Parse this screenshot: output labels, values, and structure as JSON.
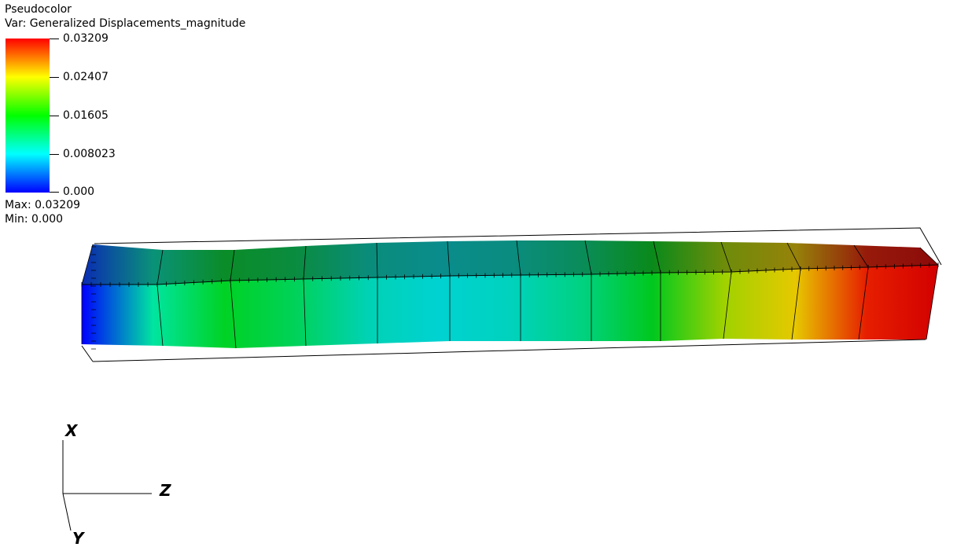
{
  "legend": {
    "plot_type": "Pseudocolor",
    "variable": "Var: Generalized Displacements_magnitude",
    "ticks": [
      {
        "value": 0.03209,
        "label": "0.03209"
      },
      {
        "value": 0.02407,
        "label": "0.02407"
      },
      {
        "value": 0.01605,
        "label": "0.01605"
      },
      {
        "value": 0.008023,
        "label": "0.008023"
      },
      {
        "value": 0.0,
        "label": "0.000"
      }
    ],
    "range": [
      0.0,
      0.03209
    ],
    "max_label": "Max:  0.03209",
    "min_label": "Min:  0.000",
    "colormap": [
      "#0000ff",
      "#00ffff",
      "#00ff00",
      "#ffff00",
      "#ff0000"
    ]
  },
  "beam": {
    "element_count": 12,
    "front_face_colors": [
      "#0000ff",
      "#00e5a0",
      "#00d224",
      "#00d25a",
      "#00d2b4",
      "#00d2d2",
      "#00d2be",
      "#00d282",
      "#00c81e",
      "#a0d200",
      "#e6c800",
      "#e61e00",
      "#d20000"
    ],
    "top_face_colors": [
      "#0a2ab4",
      "#0a9278",
      "#0a8c28",
      "#0a8c40",
      "#0a8c7a",
      "#0a8c8c",
      "#0a8c80",
      "#0a8c5a",
      "#0a8a1a",
      "#6e8c0a",
      "#96820a",
      "#961a0a",
      "#8c0a0a"
    ]
  },
  "axes_triad": {
    "x_label": "X",
    "y_label": "Y",
    "z_label": "Z"
  }
}
